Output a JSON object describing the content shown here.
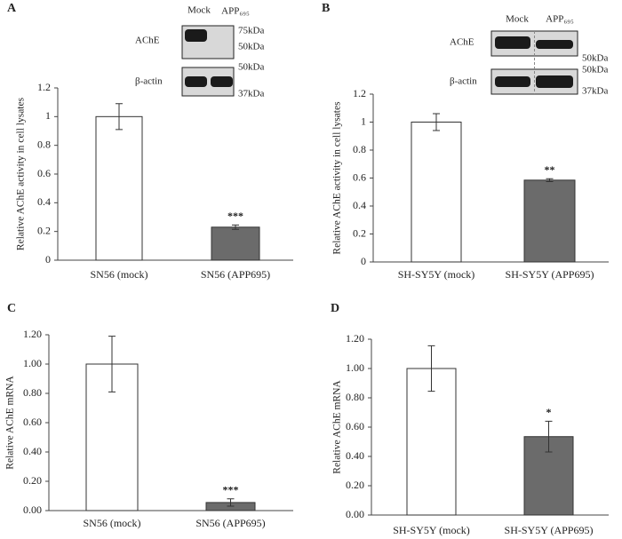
{
  "chart_data": [
    {
      "type": "bar",
      "panel": "A",
      "ylabel": "Relative AChE activity in cell lysates",
      "categories": [
        "SN56 (mock)",
        "SN56 (APP695)"
      ],
      "values": [
        1.0,
        0.23
      ],
      "errors": [
        0.09,
        0.015
      ],
      "colors": [
        "#ffffff",
        "#6b6b6b"
      ],
      "significance": [
        null,
        "***"
      ],
      "ylim": [
        0,
        1.2
      ],
      "yticks": [
        0,
        0.2,
        0.4,
        0.6,
        0.8,
        1,
        1.2
      ],
      "blot": {
        "lanes": [
          "Mock",
          "APP₆₉₅"
        ],
        "proteins": [
          "AChE",
          "β-actin"
        ],
        "markers": [
          "75kDa",
          "50kDa",
          "50kDa",
          "37kDa"
        ]
      }
    },
    {
      "type": "bar",
      "panel": "B",
      "ylabel": "Relative AChE activity in cell lysates",
      "categories": [
        "SH-SY5Y (mock)",
        "SH-SY5Y (APP695)"
      ],
      "values": [
        1.0,
        0.585
      ],
      "errors": [
        0.06,
        0.01
      ],
      "colors": [
        "#ffffff",
        "#6b6b6b"
      ],
      "significance": [
        null,
        "**"
      ],
      "ylim": [
        0,
        1.2
      ],
      "yticks": [
        0,
        0.2,
        0.4,
        0.6,
        0.8,
        1,
        1.2
      ],
      "blot": {
        "lanes": [
          "Mock",
          "APP₆₉₅"
        ],
        "proteins": [
          "AChE",
          "β-actin"
        ],
        "markers": [
          "50kDa",
          "50kDa",
          "37kDa"
        ]
      }
    },
    {
      "type": "bar",
      "panel": "C",
      "ylabel": "Relative AChE mRNA",
      "categories": [
        "SN56 (mock)",
        "SN56 (APP695)"
      ],
      "values": [
        1.0,
        0.055
      ],
      "errors": [
        0.19,
        0.025
      ],
      "colors": [
        "#ffffff",
        "#6b6b6b"
      ],
      "significance": [
        null,
        "***"
      ],
      "ylim": [
        0,
        1.2
      ],
      "yticks": [
        {
          "value": 0,
          "label": "0.00"
        },
        {
          "value": 0.2,
          "label": "0.20"
        },
        {
          "value": 0.4,
          "label": "0.40"
        },
        {
          "value": 0.6,
          "label": "0.60"
        },
        {
          "value": 0.8,
          "label": "0.80"
        },
        {
          "value": 1,
          "label": "1.00"
        },
        {
          "value": 1.2,
          "label": "1.20"
        }
      ]
    },
    {
      "type": "bar",
      "panel": "D",
      "ylabel": "Relative AChE mRNA",
      "categories": [
        "SH-SY5Y (mock)",
        "SH-SY5Y (APP695)"
      ],
      "values": [
        1.0,
        0.535
      ],
      "errors": [
        0.155,
        0.105
      ],
      "colors": [
        "#ffffff",
        "#6b6b6b"
      ],
      "significance": [
        null,
        "*"
      ],
      "ylim": [
        0,
        1.2
      ],
      "yticks": [
        {
          "value": 0,
          "label": "0.00"
        },
        {
          "value": 0.2,
          "label": "0.20"
        },
        {
          "value": 0.4,
          "label": "0.40"
        },
        {
          "value": 0.6,
          "label": "0.60"
        },
        {
          "value": 0.8,
          "label": "0.80"
        },
        {
          "value": 1,
          "label": "1.00"
        },
        {
          "value": 1.2,
          "label": "1.20"
        }
      ]
    }
  ]
}
